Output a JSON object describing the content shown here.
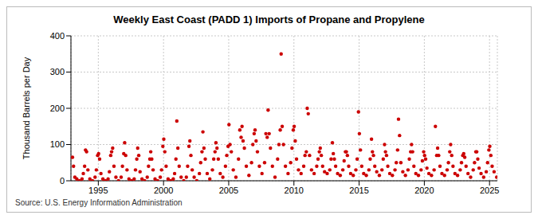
{
  "chart_data": {
    "type": "scatter",
    "title": "Weekly East Coast (PADD 1) Imports of Propane and Propylene",
    "y_label": "Thousand Barrels per Day",
    "source": "Source: U.S. Energy Information Administration",
    "color": "#cc0000",
    "marker": "circle",
    "grid": true,
    "xlim": [
      1992.9,
      2025.6
    ],
    "xticks": [
      1995,
      2000,
      2005,
      2010,
      2015,
      2020,
      2025
    ],
    "ylim": [
      0,
      400
    ],
    "yticks": [
      0,
      100,
      200,
      300,
      400
    ],
    "x": [
      1993.02,
      1993.1,
      1993.2,
      1993.35,
      1993.55,
      1993.75,
      1993.85,
      1993.95,
      1994.02,
      1994.1,
      1994.2,
      1994.35,
      1994.55,
      1994.75,
      1994.85,
      1994.95,
      1995.02,
      1995.1,
      1995.2,
      1995.35,
      1995.55,
      1995.75,
      1995.85,
      1995.95,
      1996.02,
      1996.1,
      1996.2,
      1996.35,
      1996.55,
      1996.75,
      1996.85,
      1996.95,
      1997.02,
      1997.1,
      1997.2,
      1997.35,
      1997.55,
      1997.75,
      1997.85,
      1997.95,
      1998.02,
      1998.1,
      1998.2,
      1998.35,
      1998.55,
      1998.75,
      1998.85,
      1998.95,
      1999.02,
      1999.1,
      1999.2,
      1999.35,
      1999.55,
      1999.75,
      1999.85,
      1999.95,
      2000.02,
      2000.1,
      2000.2,
      2000.35,
      2000.55,
      2000.75,
      2000.85,
      2000.95,
      2001.02,
      2001.1,
      2001.2,
      2001.35,
      2001.55,
      2001.75,
      2001.85,
      2001.95,
      2002.02,
      2002.1,
      2002.2,
      2002.35,
      2002.55,
      2002.75,
      2002.85,
      2002.95,
      2003.02,
      2003.1,
      2003.2,
      2003.35,
      2003.55,
      2003.75,
      2003.85,
      2003.95,
      2004.02,
      2004.1,
      2004.2,
      2004.35,
      2004.55,
      2004.75,
      2004.85,
      2004.95,
      2005.02,
      2005.1,
      2005.2,
      2005.35,
      2005.55,
      2005.75,
      2005.85,
      2005.95,
      2006.02,
      2006.1,
      2006.2,
      2006.35,
      2006.55,
      2006.75,
      2006.85,
      2006.95,
      2007.02,
      2007.1,
      2007.2,
      2007.35,
      2007.55,
      2007.75,
      2007.85,
      2007.95,
      2008.02,
      2008.1,
      2008.2,
      2008.35,
      2008.55,
      2008.75,
      2008.85,
      2008.95,
      2009.02,
      2009.1,
      2009.2,
      2009.35,
      2009.55,
      2009.75,
      2009.85,
      2009.95,
      2010.02,
      2010.1,
      2010.2,
      2010.35,
      2010.55,
      2010.75,
      2010.85,
      2010.95,
      2011.02,
      2011.1,
      2011.2,
      2011.35,
      2011.55,
      2011.75,
      2011.85,
      2011.95,
      2012.02,
      2012.1,
      2012.2,
      2012.35,
      2012.55,
      2012.75,
      2012.85,
      2012.95,
      2013.02,
      2013.1,
      2013.2,
      2013.35,
      2013.55,
      2013.75,
      2013.85,
      2013.95,
      2014.02,
      2014.1,
      2014.2,
      2014.35,
      2014.55,
      2014.75,
      2014.85,
      2014.95,
      2015.02,
      2015.1,
      2015.2,
      2015.35,
      2015.55,
      2015.75,
      2015.85,
      2015.95,
      2016.02,
      2016.1,
      2016.2,
      2016.35,
      2016.55,
      2016.75,
      2016.85,
      2016.95,
      2017.02,
      2017.1,
      2017.2,
      2017.35,
      2017.55,
      2017.75,
      2017.85,
      2017.95,
      2018.02,
      2018.1,
      2018.2,
      2018.35,
      2018.55,
      2018.75,
      2018.85,
      2018.95,
      2019.02,
      2019.1,
      2019.2,
      2019.35,
      2019.55,
      2019.75,
      2019.85,
      2019.95,
      2020.02,
      2020.1,
      2020.2,
      2020.35,
      2020.55,
      2020.75,
      2020.85,
      2020.95,
      2021.02,
      2021.1,
      2021.2,
      2021.35,
      2021.55,
      2021.75,
      2021.85,
      2021.95,
      2022.02,
      2022.1,
      2022.2,
      2022.35,
      2022.55,
      2022.75,
      2022.85,
      2022.95,
      2023.02,
      2023.1,
      2023.2,
      2023.35,
      2023.55,
      2023.75,
      2023.85,
      2023.95,
      2024.02,
      2024.1,
      2024.2,
      2024.35,
      2024.55,
      2024.75,
      2024.85,
      2024.95,
      2025.02,
      2025.1,
      2025.2,
      2025.35,
      2025.55
    ],
    "values": [
      65,
      40,
      10,
      5,
      0,
      5,
      20,
      40,
      85,
      80,
      30,
      5,
      0,
      10,
      30,
      70,
      75,
      60,
      20,
      5,
      0,
      5,
      25,
      70,
      80,
      90,
      40,
      10,
      0,
      10,
      40,
      75,
      105,
      70,
      30,
      5,
      0,
      5,
      30,
      60,
      90,
      70,
      25,
      5,
      0,
      10,
      40,
      60,
      80,
      60,
      30,
      5,
      0,
      10,
      30,
      95,
      115,
      80,
      40,
      5,
      0,
      5,
      20,
      60,
      165,
      90,
      40,
      10,
      0,
      10,
      40,
      95,
      110,
      70,
      30,
      10,
      0,
      20,
      50,
      80,
      135,
      90,
      60,
      20,
      5,
      30,
      60,
      80,
      105,
      90,
      60,
      20,
      10,
      40,
      70,
      95,
      155,
      100,
      80,
      30,
      10,
      60,
      140,
      120,
      150,
      110,
      90,
      40,
      15,
      50,
      100,
      130,
      140,
      110,
      80,
      40,
      20,
      50,
      130,
      120,
      195,
      130,
      90,
      40,
      10,
      60,
      100,
      140,
      350,
      150,
      100,
      40,
      20,
      50,
      90,
      140,
      150,
      110,
      60,
      30,
      20,
      40,
      70,
      80,
      200,
      185,
      70,
      30,
      20,
      40,
      60,
      80,
      90,
      70,
      40,
      25,
      20,
      30,
      60,
      105,
      75,
      60,
      40,
      20,
      15,
      30,
      55,
      80,
      80,
      70,
      40,
      20,
      15,
      30,
      60,
      190,
      130,
      85,
      40,
      20,
      15,
      30,
      60,
      115,
      80,
      70,
      40,
      25,
      15,
      30,
      60,
      100,
      80,
      70,
      40,
      20,
      15,
      30,
      50,
      85,
      170,
      125,
      50,
      25,
      15,
      30,
      60,
      80,
      100,
      80,
      40,
      20,
      15,
      30,
      55,
      80,
      70,
      60,
      35,
      20,
      15,
      30,
      150,
      70,
      90,
      70,
      40,
      20,
      15,
      30,
      50,
      80,
      100,
      70,
      40,
      20,
      15,
      30,
      50,
      70,
      75,
      65,
      40,
      20,
      10,
      30,
      50,
      80,
      80,
      60,
      35,
      20,
      10,
      25,
      50,
      85,
      95,
      70,
      40,
      25,
      10
    ]
  }
}
